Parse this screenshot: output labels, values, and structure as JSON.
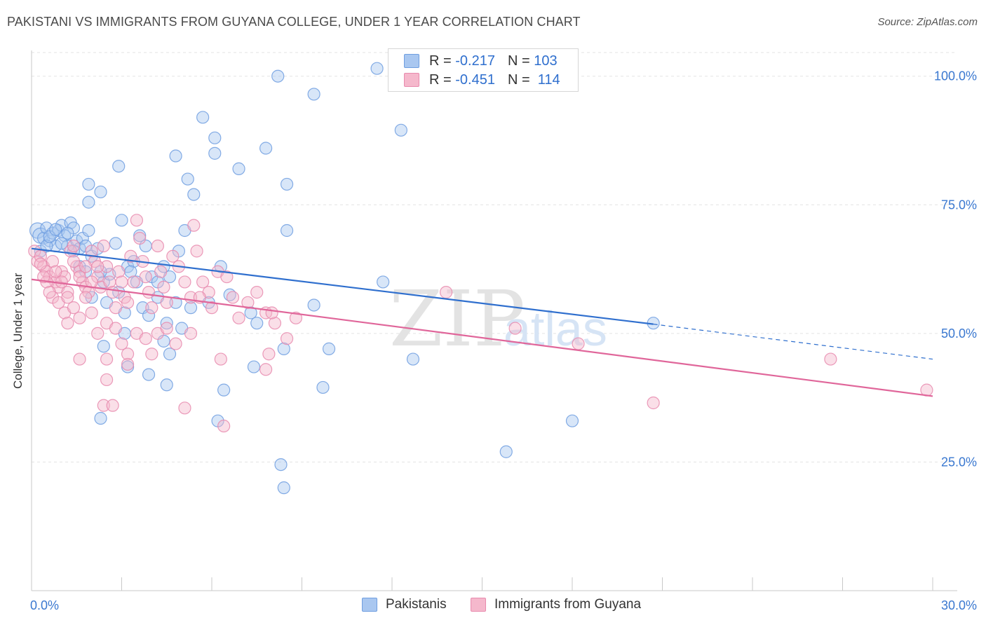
{
  "title": "PAKISTANI VS IMMIGRANTS FROM GUYANA COLLEGE, UNDER 1 YEAR CORRELATION CHART",
  "source": "Source: ZipAtlas.com",
  "watermark": {
    "zip": "ZIP",
    "atlas": "atlas"
  },
  "legend": {
    "r_label": "R =",
    "n_label": "N =",
    "rows": [
      {
        "r": "-0.217",
        "n": "103",
        "color": "#a9c7f0"
      },
      {
        "r": "-0.451",
        "n": "114",
        "color": "#f5b8cc"
      }
    ]
  },
  "colors": {
    "blue": "#2f6fce",
    "pink": "#e0669a",
    "blue_fill": "#a9c7f0",
    "pink_fill": "#f5b8cc",
    "axis_label": "#3a78d0"
  },
  "chart_data": {
    "type": "scatter",
    "title": "PAKISTANI VS IMMIGRANTS FROM GUYANA COLLEGE, UNDER 1 YEAR CORRELATION CHART",
    "xlabel": "",
    "ylabel": "College, Under 1 year",
    "xlim": [
      0,
      30
    ],
    "ylim": [
      0,
      105
    ],
    "x_tick_labels": [
      "0.0%",
      "30.0%"
    ],
    "y_ticks": [
      25,
      50,
      75,
      100
    ],
    "y_tick_labels": [
      "25.0%",
      "50.0%",
      "75.0%",
      "100.0%"
    ],
    "grid": true,
    "legend_position": "top-center",
    "series": [
      {
        "name": "Pakistanis",
        "color": "#2f6fce",
        "r": -0.217,
        "n": 103,
        "trend": {
          "x0": 0,
          "y0": 66.5,
          "x1": 20.7,
          "y1": 51.8,
          "dash_to_x": 30,
          "dash_to_y": 45.0
        },
        "points": [
          [
            0.2,
            70
          ],
          [
            0.3,
            69
          ],
          [
            0.4,
            68.5
          ],
          [
            0.5,
            70.5
          ],
          [
            0.6,
            68
          ],
          [
            0.7,
            69.5
          ],
          [
            0.8,
            67
          ],
          [
            0.9,
            70
          ],
          [
            1.0,
            71
          ],
          [
            1.1,
            69
          ],
          [
            1.2,
            67
          ],
          [
            1.3,
            71.5
          ],
          [
            1.4,
            70.5
          ],
          [
            1.5,
            68
          ],
          [
            1.6,
            66.5
          ],
          [
            1.7,
            68.5
          ],
          [
            1.8,
            67
          ],
          [
            1.9,
            70
          ],
          [
            0.3,
            66
          ],
          [
            0.5,
            67
          ],
          [
            0.6,
            68.8
          ],
          [
            0.8,
            70.2
          ],
          [
            1.0,
            67.5
          ],
          [
            1.2,
            69.5
          ],
          [
            1.4,
            66
          ],
          [
            1.6,
            63
          ],
          [
            1.8,
            62
          ],
          [
            2.0,
            65
          ],
          [
            2.2,
            66.5
          ],
          [
            2.4,
            60
          ],
          [
            2.6,
            61.5
          ],
          [
            2.8,
            67.5
          ],
          [
            3.0,
            72
          ],
          [
            3.2,
            63
          ],
          [
            3.4,
            64
          ],
          [
            3.6,
            69
          ],
          [
            3.8,
            67
          ],
          [
            4.0,
            61
          ],
          [
            4.2,
            60
          ],
          [
            4.4,
            63
          ],
          [
            4.6,
            61
          ],
          [
            4.9,
            66
          ],
          [
            5.1,
            70
          ],
          [
            1.9,
            75.5
          ],
          [
            1.9,
            79
          ],
          [
            2.3,
            77.5
          ],
          [
            2.9,
            82.5
          ],
          [
            4.8,
            84.5
          ],
          [
            5.2,
            80
          ],
          [
            5.4,
            77
          ],
          [
            5.7,
            92
          ],
          [
            6.1,
            88
          ],
          [
            6.1,
            85
          ],
          [
            6.9,
            82
          ],
          [
            7.8,
            86
          ],
          [
            8.2,
            100
          ],
          [
            8.5,
            79
          ],
          [
            9.4,
            96.5
          ],
          [
            11.5,
            101.5
          ],
          [
            12.3,
            89.5
          ],
          [
            8.5,
            70
          ],
          [
            2.0,
            57
          ],
          [
            2.3,
            62
          ],
          [
            2.5,
            56
          ],
          [
            2.9,
            58
          ],
          [
            3.1,
            54
          ],
          [
            3.3,
            62
          ],
          [
            3.5,
            60
          ],
          [
            3.7,
            55
          ],
          [
            3.9,
            53.5
          ],
          [
            4.2,
            57
          ],
          [
            4.5,
            52
          ],
          [
            4.8,
            56
          ],
          [
            5.0,
            51
          ],
          [
            5.3,
            55
          ],
          [
            5.9,
            56
          ],
          [
            6.3,
            63
          ],
          [
            6.6,
            57.5
          ],
          [
            7.3,
            54
          ],
          [
            7.5,
            52
          ],
          [
            8.4,
            47
          ],
          [
            9.4,
            55.5
          ],
          [
            9.9,
            47
          ],
          [
            2.4,
            47.5
          ],
          [
            3.1,
            50
          ],
          [
            3.2,
            43.5
          ],
          [
            3.9,
            42
          ],
          [
            4.4,
            48.5
          ],
          [
            4.6,
            46
          ],
          [
            4.5,
            40
          ],
          [
            6.4,
            39
          ],
          [
            7.4,
            43.5
          ],
          [
            9.7,
            39.5
          ],
          [
            12.7,
            45
          ],
          [
            2.3,
            33.5
          ],
          [
            6.2,
            33
          ],
          [
            18.0,
            33
          ],
          [
            15.8,
            27
          ],
          [
            8.3,
            24.5
          ],
          [
            8.4,
            20
          ],
          [
            20.7,
            52
          ],
          [
            11.7,
            60
          ]
        ]
      },
      {
        "name": "Immigrants from Guyana",
        "color": "#e0669a",
        "r": -0.451,
        "n": 114,
        "trend": {
          "x0": 0,
          "y0": 60.5,
          "x1": 30,
          "y1": 37.8
        },
        "points": [
          [
            0.1,
            66
          ],
          [
            0.2,
            64
          ],
          [
            0.3,
            65
          ],
          [
            0.4,
            63
          ],
          [
            0.5,
            62
          ],
          [
            0.6,
            61
          ],
          [
            0.7,
            64
          ],
          [
            0.8,
            60
          ],
          [
            0.9,
            59
          ],
          [
            1.0,
            62
          ],
          [
            1.1,
            61
          ],
          [
            1.2,
            58
          ],
          [
            1.3,
            66
          ],
          [
            1.4,
            67
          ],
          [
            1.5,
            63
          ],
          [
            1.6,
            62
          ],
          [
            1.7,
            60
          ],
          [
            1.8,
            59
          ],
          [
            1.9,
            58
          ],
          [
            2.0,
            66
          ],
          [
            2.1,
            64
          ],
          [
            2.2,
            61
          ],
          [
            2.3,
            59
          ],
          [
            2.4,
            67
          ],
          [
            2.5,
            63
          ],
          [
            2.6,
            60
          ],
          [
            2.7,
            58
          ],
          [
            2.8,
            55
          ],
          [
            2.9,
            62
          ],
          [
            3.0,
            60
          ],
          [
            3.1,
            57
          ],
          [
            3.2,
            56
          ],
          [
            3.3,
            65
          ],
          [
            3.4,
            60
          ],
          [
            3.5,
            72
          ],
          [
            3.6,
            68.5
          ],
          [
            3.7,
            64
          ],
          [
            3.8,
            61
          ],
          [
            3.9,
            58
          ],
          [
            4.0,
            55
          ],
          [
            4.2,
            67
          ],
          [
            4.3,
            62
          ],
          [
            4.4,
            59
          ],
          [
            4.5,
            56
          ],
          [
            4.7,
            65
          ],
          [
            4.9,
            63
          ],
          [
            5.1,
            60
          ],
          [
            5.3,
            57
          ],
          [
            5.4,
            71
          ],
          [
            5.5,
            66
          ],
          [
            5.7,
            60
          ],
          [
            5.9,
            58
          ],
          [
            6.0,
            55
          ],
          [
            6.2,
            62
          ],
          [
            6.5,
            61
          ],
          [
            6.7,
            57
          ],
          [
            6.9,
            53
          ],
          [
            7.2,
            56
          ],
          [
            7.5,
            58
          ],
          [
            7.8,
            54
          ],
          [
            8.1,
            52
          ],
          [
            8.5,
            49
          ],
          [
            8.8,
            53
          ],
          [
            0.3,
            63.5
          ],
          [
            0.5,
            60
          ],
          [
            0.7,
            57
          ],
          [
            0.9,
            56
          ],
          [
            1.1,
            54
          ],
          [
            1.2,
            52
          ],
          [
            1.4,
            55
          ],
          [
            1.6,
            53
          ],
          [
            1.8,
            57
          ],
          [
            2.0,
            54
          ],
          [
            2.2,
            50
          ],
          [
            2.5,
            52
          ],
          [
            2.8,
            51
          ],
          [
            3.0,
            48
          ],
          [
            3.2,
            46
          ],
          [
            3.5,
            50
          ],
          [
            3.8,
            49
          ],
          [
            4.0,
            46
          ],
          [
            4.2,
            50
          ],
          [
            4.5,
            51
          ],
          [
            4.8,
            48
          ],
          [
            5.3,
            50
          ],
          [
            5.6,
            57
          ],
          [
            6.3,
            45
          ],
          [
            7.8,
            43
          ],
          [
            7.9,
            46
          ],
          [
            8.0,
            54
          ],
          [
            1.6,
            45
          ],
          [
            2.5,
            45
          ],
          [
            2.5,
            41
          ],
          [
            3.2,
            44
          ],
          [
            2.4,
            36
          ],
          [
            2.7,
            36
          ],
          [
            5.1,
            35.5
          ],
          [
            6.4,
            32
          ],
          [
            0.4,
            61
          ],
          [
            0.6,
            58
          ],
          [
            0.8,
            62
          ],
          [
            1.0,
            60
          ],
          [
            1.2,
            57
          ],
          [
            1.4,
            64
          ],
          [
            1.6,
            61
          ],
          [
            1.8,
            63
          ],
          [
            2.0,
            60
          ],
          [
            2.2,
            63
          ],
          [
            13.8,
            58
          ],
          [
            16.1,
            51
          ],
          [
            18.2,
            48
          ],
          [
            20.7,
            36.5
          ],
          [
            26.6,
            45
          ],
          [
            29.8,
            39
          ]
        ]
      }
    ]
  },
  "bottom_legend": [
    {
      "label": "Pakistanis",
      "color": "#a9c7f0"
    },
    {
      "label": "Immigrants from Guyana",
      "color": "#f5b8cc"
    }
  ],
  "y_axis_label": "College, Under 1 year"
}
